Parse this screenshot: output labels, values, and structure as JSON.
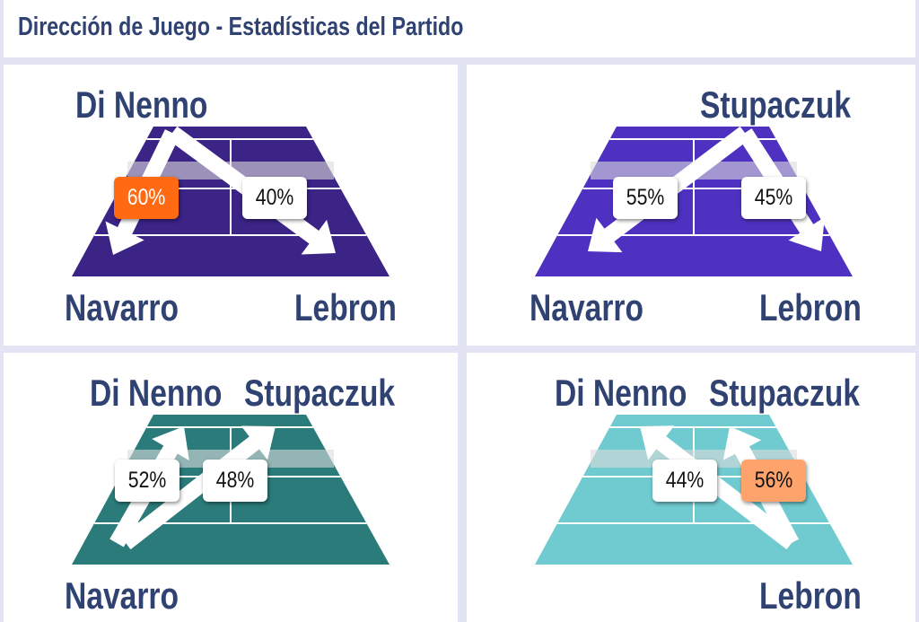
{
  "header": {
    "title": "Dirección de Juego - Estadísticas del Partido"
  },
  "colors": {
    "court_1": "#3c2386",
    "court_2": "#4f31c2",
    "court_3": "#2a7b7a",
    "court_4": "#70cbd0",
    "highlight_strong": "#ff6a13",
    "highlight_light": "#ffa36c",
    "text": "#2f4272"
  },
  "panels": [
    {
      "top_players": [
        "Di Nenno"
      ],
      "bottom_players": [
        "Navarro",
        "Lebron"
      ],
      "stats": [
        {
          "value": "60%",
          "highlight": "strong"
        },
        {
          "value": "40%",
          "highlight": "none"
        }
      ]
    },
    {
      "top_players": [
        "Stupaczuk"
      ],
      "bottom_players": [
        "Navarro",
        "Lebron"
      ],
      "stats": [
        {
          "value": "55%",
          "highlight": "none"
        },
        {
          "value": "45%",
          "highlight": "none"
        }
      ]
    },
    {
      "top_players": [
        "Di Nenno",
        "Stupaczuk"
      ],
      "bottom_players": [
        "Navarro"
      ],
      "stats": [
        {
          "value": "52%",
          "highlight": "none"
        },
        {
          "value": "48%",
          "highlight": "none"
        }
      ]
    },
    {
      "top_players": [
        "Di Nenno",
        "Stupaczuk"
      ],
      "bottom_players": [
        "Lebron"
      ],
      "stats": [
        {
          "value": "44%",
          "highlight": "none"
        },
        {
          "value": "56%",
          "highlight": "light"
        }
      ]
    }
  ]
}
